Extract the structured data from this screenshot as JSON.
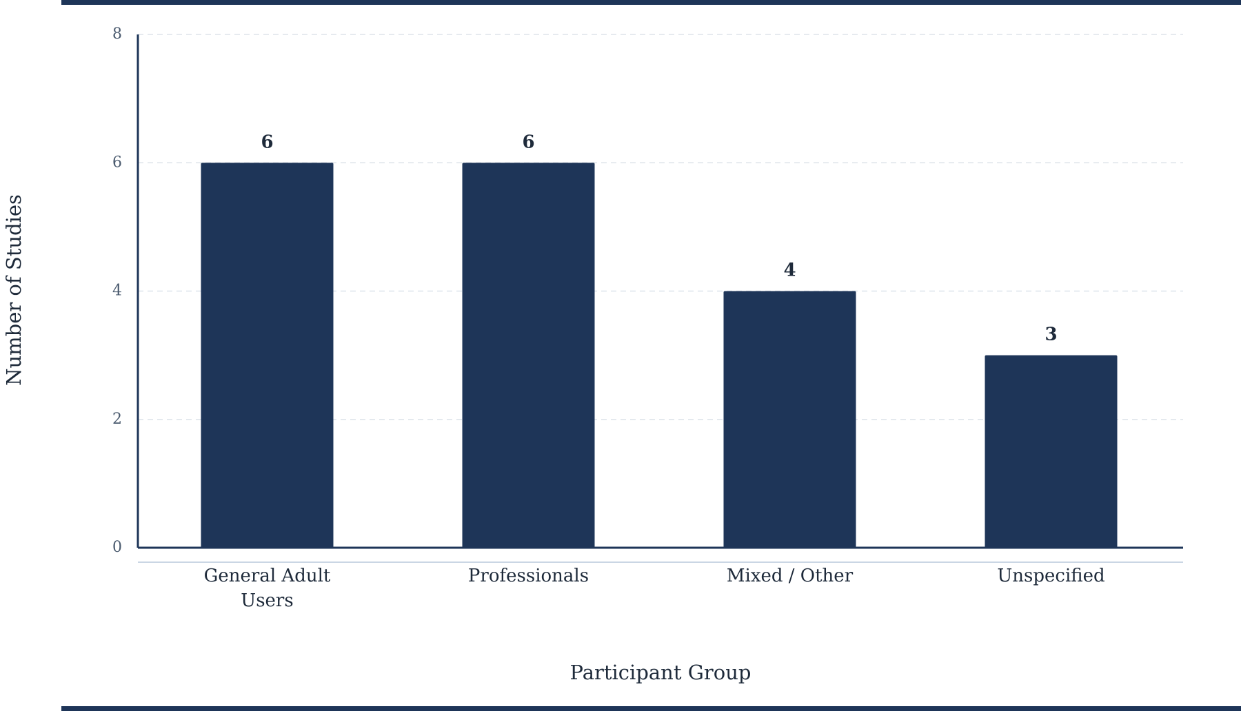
{
  "chart_data": {
    "type": "bar",
    "title": "",
    "xlabel": "Participant Group",
    "ylabel": "Number of Studies",
    "categories": [
      "General Adult Users",
      "Professionals",
      "Mixed / Other",
      "Unspecified"
    ],
    "category_lines": [
      [
        "General Adult",
        "Users"
      ],
      [
        "Professionals"
      ],
      [
        "Mixed / Other"
      ],
      [
        "Unspecified"
      ]
    ],
    "values": [
      6,
      6,
      4,
      3
    ],
    "value_labels": [
      "6",
      "6",
      "4",
      "3"
    ],
    "ylim": [
      0,
      8
    ],
    "yticks": [
      0,
      2,
      4,
      6,
      8
    ],
    "grid": "horizontal dashed",
    "legend": "none",
    "colors": {
      "bar": "#1e3558",
      "axis": "#1e3558",
      "grid": "#dde3ea",
      "baseline_secondary": "#b8c8dc",
      "frame_rule": "#1e3558"
    }
  }
}
